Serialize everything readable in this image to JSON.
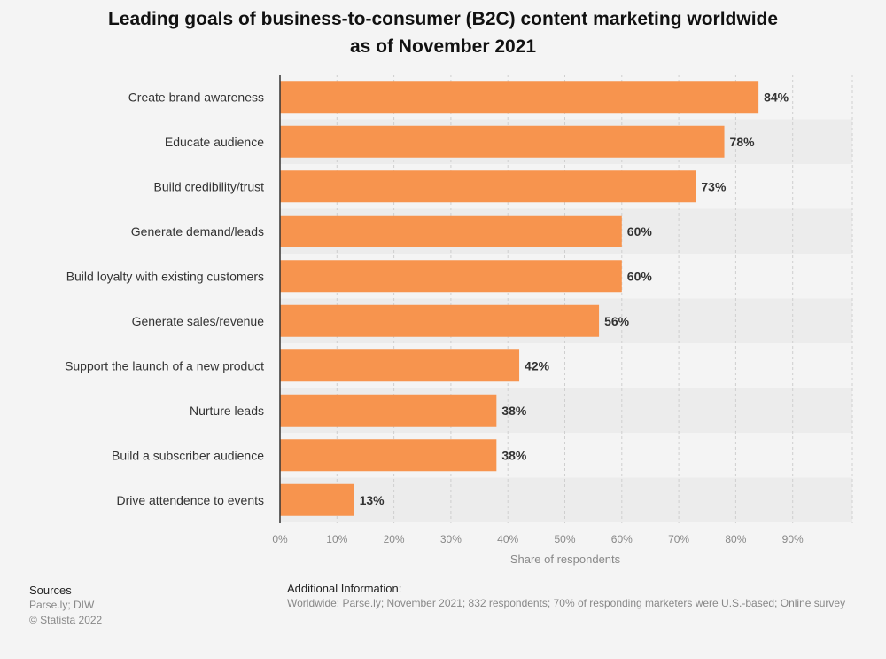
{
  "title": {
    "line1": "Leading goals of business-to-consumer (B2C) content marketing worldwide",
    "line2": "as of November 2021"
  },
  "chart_data": {
    "type": "bar",
    "orientation": "horizontal",
    "categories": [
      "Create brand awareness",
      "Educate audience",
      "Build credibility/trust",
      "Generate demand/leads",
      "Build loyalty with existing customers",
      "Generate sales/revenue",
      "Support the launch of a new product",
      "Nurture leads",
      "Build a subscriber audience",
      "Drive attendence to events"
    ],
    "values": [
      84,
      78,
      73,
      60,
      60,
      56,
      42,
      38,
      38,
      13
    ],
    "value_labels": [
      "84%",
      "78%",
      "73%",
      "60%",
      "60%",
      "56%",
      "42%",
      "38%",
      "38%",
      "13%"
    ],
    "xlabel": "Share of respondents",
    "ylabel": "",
    "xlim": [
      0,
      100
    ],
    "xticks": [
      0,
      10,
      20,
      30,
      40,
      50,
      60,
      70,
      80,
      90
    ],
    "xtick_labels": [
      "0%",
      "10%",
      "20%",
      "30%",
      "40%",
      "50%",
      "60%",
      "70%",
      "80%",
      "90%"
    ],
    "grid": true,
    "legend": "none",
    "colors": {
      "bar": "#f7944e",
      "grid": "#cfcfcf",
      "band": "#ececec"
    }
  },
  "sources": {
    "heading": "Sources",
    "line1": "Parse.ly; DIW",
    "line2": "© Statista 2022"
  },
  "additional_info": {
    "heading": "Additional Information:",
    "text": "Worldwide; Parse.ly; November 2021; 832 respondents; 70% of responding marketers were U.S.-based; Online survey"
  }
}
